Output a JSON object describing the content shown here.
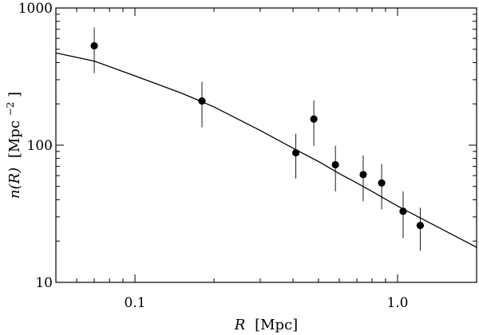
{
  "chart_data": {
    "type": "scatter",
    "title": "",
    "xlabel": {
      "symbol": "R",
      "unit": "[Mpc]"
    },
    "ylabel": {
      "symbol": "n(R)",
      "unit": "[Mpc",
      "unit_exponent": "−2",
      "unit_close": "]"
    },
    "xscale": "log",
    "yscale": "log",
    "xlim": [
      0.05,
      2.0
    ],
    "ylim": [
      10,
      1000
    ],
    "xticks": [
      {
        "value": 0.1,
        "label": "0.1"
      },
      {
        "value": 1.0,
        "label": "1.0"
      }
    ],
    "yticks": [
      {
        "value": 10,
        "label": "10"
      },
      {
        "value": 100,
        "label": "100"
      },
      {
        "value": 1000,
        "label": "1000"
      }
    ],
    "grid": false,
    "legend": "none",
    "points": [
      {
        "x": 0.07,
        "y": 530,
        "y_low": 335,
        "y_high": 720
      },
      {
        "x": 0.18,
        "y": 210,
        "y_low": 135,
        "y_high": 290
      },
      {
        "x": 0.41,
        "y": 88,
        "y_low": 57,
        "y_high": 121
      },
      {
        "x": 0.48,
        "y": 155,
        "y_low": 99,
        "y_high": 212
      },
      {
        "x": 0.58,
        "y": 72,
        "y_low": 46,
        "y_high": 99
      },
      {
        "x": 0.74,
        "y": 61,
        "y_low": 39,
        "y_high": 84
      },
      {
        "x": 0.87,
        "y": 53,
        "y_low": 34,
        "y_high": 73
      },
      {
        "x": 1.05,
        "y": 33,
        "y_low": 21,
        "y_high": 46
      },
      {
        "x": 1.22,
        "y": 26,
        "y_low": 17,
        "y_high": 35
      }
    ],
    "model_curve": {
      "x": [
        0.05,
        0.07,
        0.1,
        0.15,
        0.2,
        0.3,
        0.4,
        0.5,
        0.6,
        0.7,
        0.8,
        1.0,
        1.2,
        1.5,
        2.0
      ],
      "y": [
        470,
        410,
        320,
        240,
        190,
        128,
        95,
        76,
        62,
        53,
        46,
        36,
        30,
        24,
        18
      ]
    },
    "colors": {
      "axes": "#000000",
      "markers": "#000000",
      "curve": "#000000",
      "background": "#ffffff"
    }
  }
}
